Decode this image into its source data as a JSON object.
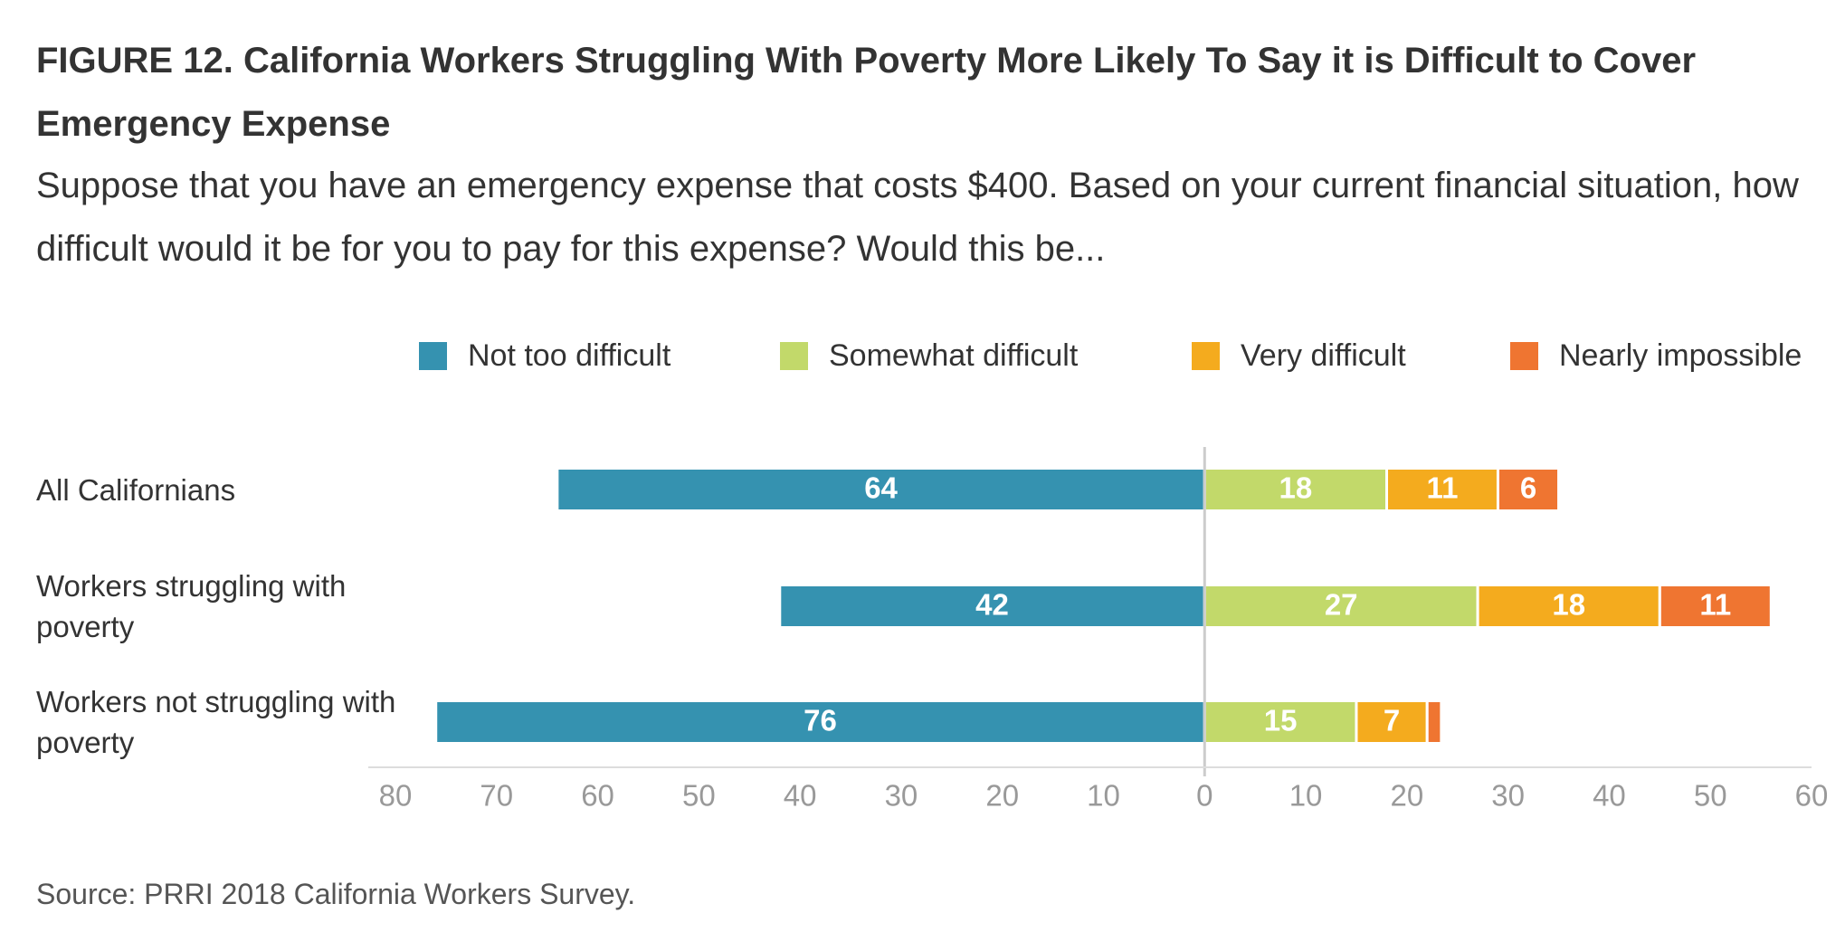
{
  "chart_data": {
    "type": "diverging_bar",
    "title": "FIGURE 12. California Workers Struggling With Poverty More Likely To Say it is Difficult to Cover Emergency Expense",
    "subtitle": "Suppose that you have an emergency expense that costs $400. Based on your current financial situation, how difficult would it be for you to pay for this expense? Would this be...",
    "categories": [
      "All Californians",
      "Workers struggling with poverty",
      "Workers not struggling with poverty"
    ],
    "series": [
      {
        "name": "Not too difficult",
        "color": "#3592b0",
        "values": [
          -64,
          -42,
          -76
        ],
        "value_labels": [
          "64",
          "42",
          "76"
        ]
      },
      {
        "name": "Somewhat difficult",
        "color": "#c2d96a",
        "values": [
          18,
          27,
          15
        ]
      },
      {
        "name": "Very difficult",
        "color": "#f4ab1e",
        "values": [
          11,
          18,
          7
        ]
      },
      {
        "name": "Nearly impossible",
        "color": "#ef7531",
        "values": [
          6,
          11,
          1.4
        ]
      }
    ],
    "xlim": [
      -80,
      60
    ],
    "xticks": [
      {
        "value": -80,
        "label": "80"
      },
      {
        "value": -70,
        "label": "70"
      },
      {
        "value": -60,
        "label": "60"
      },
      {
        "value": -50,
        "label": "50"
      },
      {
        "value": -40,
        "label": "40"
      },
      {
        "value": -30,
        "label": "30"
      },
      {
        "value": -20,
        "label": "20"
      },
      {
        "value": -10,
        "label": "10"
      },
      0,
      10,
      20,
      30,
      40,
      50,
      60
    ],
    "source": "Source: PRRI 2018 California Workers Survey."
  }
}
